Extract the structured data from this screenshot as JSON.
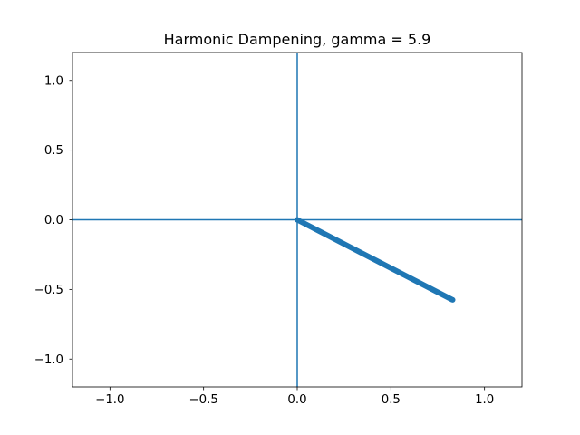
{
  "chart_data": {
    "type": "line",
    "title": "Harmonic Dampening, gamma = 5.9",
    "xlabel": "",
    "ylabel": "",
    "xlim": [
      -1.2,
      1.2
    ],
    "ylim": [
      -1.2,
      1.2
    ],
    "grid": false,
    "legend": "none",
    "x_ticks": [
      -1.0,
      -0.5,
      0.0,
      0.5,
      1.0
    ],
    "x_tick_labels": [
      "−1.0",
      "−0.5",
      "0.0",
      "0.5",
      "1.0"
    ],
    "y_ticks": [
      1.0,
      0.5,
      0.0,
      -0.5,
      -1.0
    ],
    "y_tick_labels": [
      "1.0",
      "0.5",
      "0.0",
      "−0.5",
      "−1.0"
    ],
    "reference_lines": [
      {
        "orientation": "horizontal",
        "value": 0.0
      },
      {
        "orientation": "vertical",
        "value": 0.0
      }
    ],
    "series": [
      {
        "x": [
          0.0,
          0.83
        ],
        "y": [
          0.0,
          -0.575
        ],
        "color": "#1f77b4",
        "style": "thick-line-with-endpoint-marker"
      }
    ],
    "colors": {
      "series": "#1f77b4",
      "axes": "#000000"
    }
  }
}
